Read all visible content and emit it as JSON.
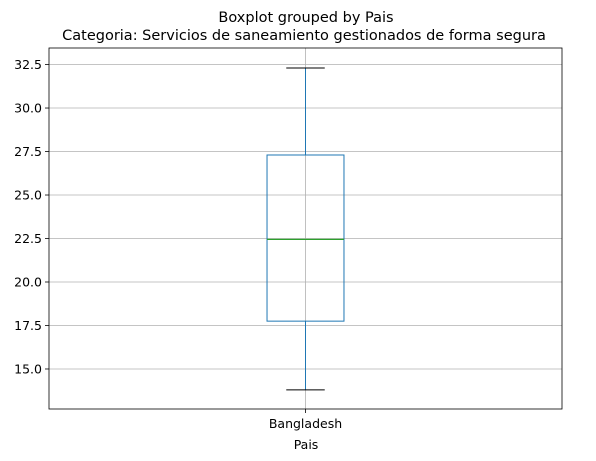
{
  "chart_data": {
    "type": "boxplot",
    "suptitle": "Boxplot grouped by Pais",
    "title": "Categoria: Servicios de saneamiento gestionados de forma segura",
    "xlabel": "Pais",
    "ylabel": "",
    "categories": [
      "Bangladesh"
    ],
    "boxes": [
      {
        "category": "Bangladesh",
        "whisker_low": 13.8,
        "q1": 17.75,
        "median": 22.45,
        "q3": 27.3,
        "whisker_high": 32.3
      }
    ],
    "ylim": [
      12.7,
      33.45
    ],
    "yticks": [
      15.0,
      17.5,
      20.0,
      22.5,
      25.0,
      27.5,
      30.0,
      32.5
    ],
    "ytick_labels": [
      "15.0",
      "17.5",
      "20.0",
      "22.5",
      "25.0",
      "27.5",
      "30.0",
      "32.5"
    ],
    "grid": true,
    "colors": {
      "box": "#1f77b4",
      "median": "#2ca02c",
      "whisker": "#1f77b4",
      "cap": "#000000",
      "grid": "#b0b0b0",
      "axes": "#000000"
    }
  }
}
